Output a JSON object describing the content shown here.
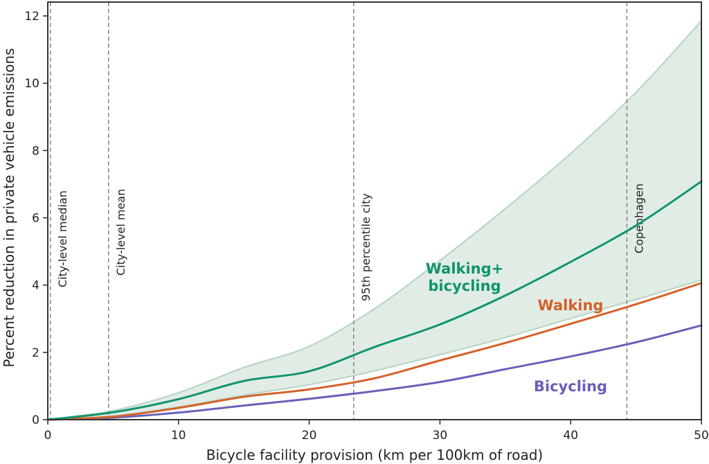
{
  "chart_data": {
    "type": "line",
    "title": "",
    "xlabel": "Bicycle facility provision (km per 100km of road)",
    "ylabel": "Percent reduction in private vehicle emissions",
    "xlim": [
      0,
      50
    ],
    "ylim": [
      0,
      12.4
    ],
    "xticks": [
      0,
      10,
      20,
      30,
      40,
      50
    ],
    "yticks": [
      0,
      2,
      4,
      6,
      8,
      10,
      12
    ],
    "xtick_labels": [
      "0",
      "10",
      "20",
      "30",
      "40",
      "50"
    ],
    "ytick_labels": [
      "0",
      "2",
      "4",
      "6",
      "8",
      "10",
      "12"
    ],
    "grid": false,
    "legend": "none (inline labels)",
    "x": [
      0,
      5,
      10,
      15,
      20,
      25,
      30,
      35,
      40,
      45,
      50
    ],
    "series": [
      {
        "name": "Walking+ bicycling",
        "label_lines": [
          "Walking+",
          "bicycling"
        ],
        "color": "#10946f",
        "values": [
          0,
          0.22,
          0.61,
          1.15,
          1.44,
          2.16,
          2.83,
          3.69,
          4.69,
          5.77,
          7.08
        ]
      },
      {
        "name": "Walking",
        "label_lines": [
          "Walking"
        ],
        "color": "#d4612a",
        "values": [
          0,
          0.09,
          0.35,
          0.68,
          0.9,
          1.23,
          1.76,
          2.28,
          2.85,
          3.43,
          4.06
        ]
      },
      {
        "name": "Bicycling",
        "label_lines": [
          "Bicycling"
        ],
        "color": "#6a60b8",
        "values": [
          0,
          0.06,
          0.21,
          0.42,
          0.62,
          0.85,
          1.12,
          1.5,
          1.88,
          2.3,
          2.8
        ]
      }
    ],
    "band": {
      "name": "Walking+bicycling uncertainty range",
      "fill": "#e1ece5",
      "edge": "#b9d6c6",
      "upper": [
        0,
        0.27,
        0.8,
        1.55,
        2.18,
        3.3,
        4.73,
        6.27,
        7.91,
        9.73,
        11.85
      ],
      "lower": [
        0,
        0.11,
        0.38,
        0.73,
        1.04,
        1.45,
        1.93,
        2.44,
        3.01,
        3.57,
        4.15
      ]
    },
    "reference_lines": [
      {
        "label": "City-level median",
        "x": 0.2
      },
      {
        "label": "City-level mean",
        "x": 4.65
      },
      {
        "label": "95th percentile city",
        "x": 23.4
      },
      {
        "label": "Copenhagen",
        "x": 44.3
      }
    ]
  }
}
